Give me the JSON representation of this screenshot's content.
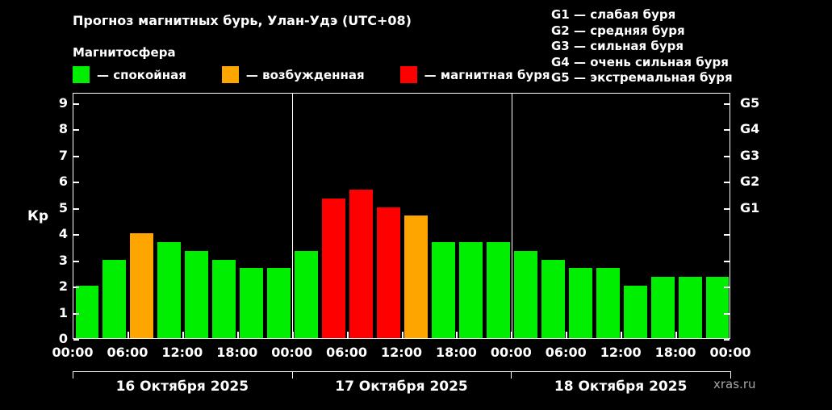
{
  "title": "Прогноз магнитных бурь, Улан-Удэ (UTC+08)",
  "subtitle": "Магнитосфера",
  "legend": [
    {
      "label": "— спокойная",
      "key": "quiet",
      "color": "#00ee00"
    },
    {
      "label": "— возбужденная",
      "key": "excited",
      "color": "#ffa500"
    },
    {
      "label": "— магнитная буря",
      "key": "storm",
      "color": "#ff0000"
    }
  ],
  "storm_scale": [
    "G1 — слабая буря",
    "G2 — средняя буря",
    "G3 — сильная буря",
    "G4 — очень сильная буря",
    "G5 — экстремальная буря"
  ],
  "watermark": "xras.ru",
  "chart_data": {
    "type": "bar",
    "title": "Прогноз магнитных бурь, Улан-Удэ (UTC+08)",
    "ylabel": "Кр",
    "ylim": [
      0,
      9.4
    ],
    "yticks": [
      0,
      1,
      2,
      3,
      4,
      5,
      6,
      7,
      8,
      9
    ],
    "right_axis_ticks": [
      {
        "label": "G1",
        "value": 5
      },
      {
        "label": "G2",
        "value": 6
      },
      {
        "label": "G3",
        "value": 7
      },
      {
        "label": "G4",
        "value": 8
      },
      {
        "label": "G5",
        "value": 9
      }
    ],
    "x_tick_labels": [
      "00:00",
      "06:00",
      "12:00",
      "18:00",
      "00:00",
      "06:00",
      "12:00",
      "18:00",
      "00:00",
      "06:00",
      "12:00",
      "18:00",
      "00:00"
    ],
    "day_labels": [
      "16 Октября 2025",
      "17 Октября 2025",
      "18 Октября 2025"
    ],
    "bars_per_day": 8,
    "interval_hours": 3,
    "colors": {
      "quiet": "#00ee00",
      "excited": "#ffa500",
      "storm": "#ff0000"
    },
    "bars": [
      {
        "v": 2,
        "k": "quiet"
      },
      {
        "v": 3,
        "k": "quiet"
      },
      {
        "v": 4,
        "k": "excited"
      },
      {
        "v": 3.67,
        "k": "quiet"
      },
      {
        "v": 3.33,
        "k": "quiet"
      },
      {
        "v": 3,
        "k": "quiet"
      },
      {
        "v": 2.67,
        "k": "quiet"
      },
      {
        "v": 2.67,
        "k": "quiet"
      },
      {
        "v": 3.33,
        "k": "quiet"
      },
      {
        "v": 5.33,
        "k": "storm"
      },
      {
        "v": 5.67,
        "k": "storm"
      },
      {
        "v": 5,
        "k": "storm"
      },
      {
        "v": 4.67,
        "k": "excited"
      },
      {
        "v": 3.67,
        "k": "quiet"
      },
      {
        "v": 3.67,
        "k": "quiet"
      },
      {
        "v": 3.67,
        "k": "quiet"
      },
      {
        "v": 3.33,
        "k": "quiet"
      },
      {
        "v": 3,
        "k": "quiet"
      },
      {
        "v": 2.67,
        "k": "quiet"
      },
      {
        "v": 2.67,
        "k": "quiet"
      },
      {
        "v": 2,
        "k": "quiet"
      },
      {
        "v": 2.33,
        "k": "quiet"
      },
      {
        "v": 2.33,
        "k": "quiet"
      },
      {
        "v": 2.33,
        "k": "quiet"
      }
    ]
  }
}
